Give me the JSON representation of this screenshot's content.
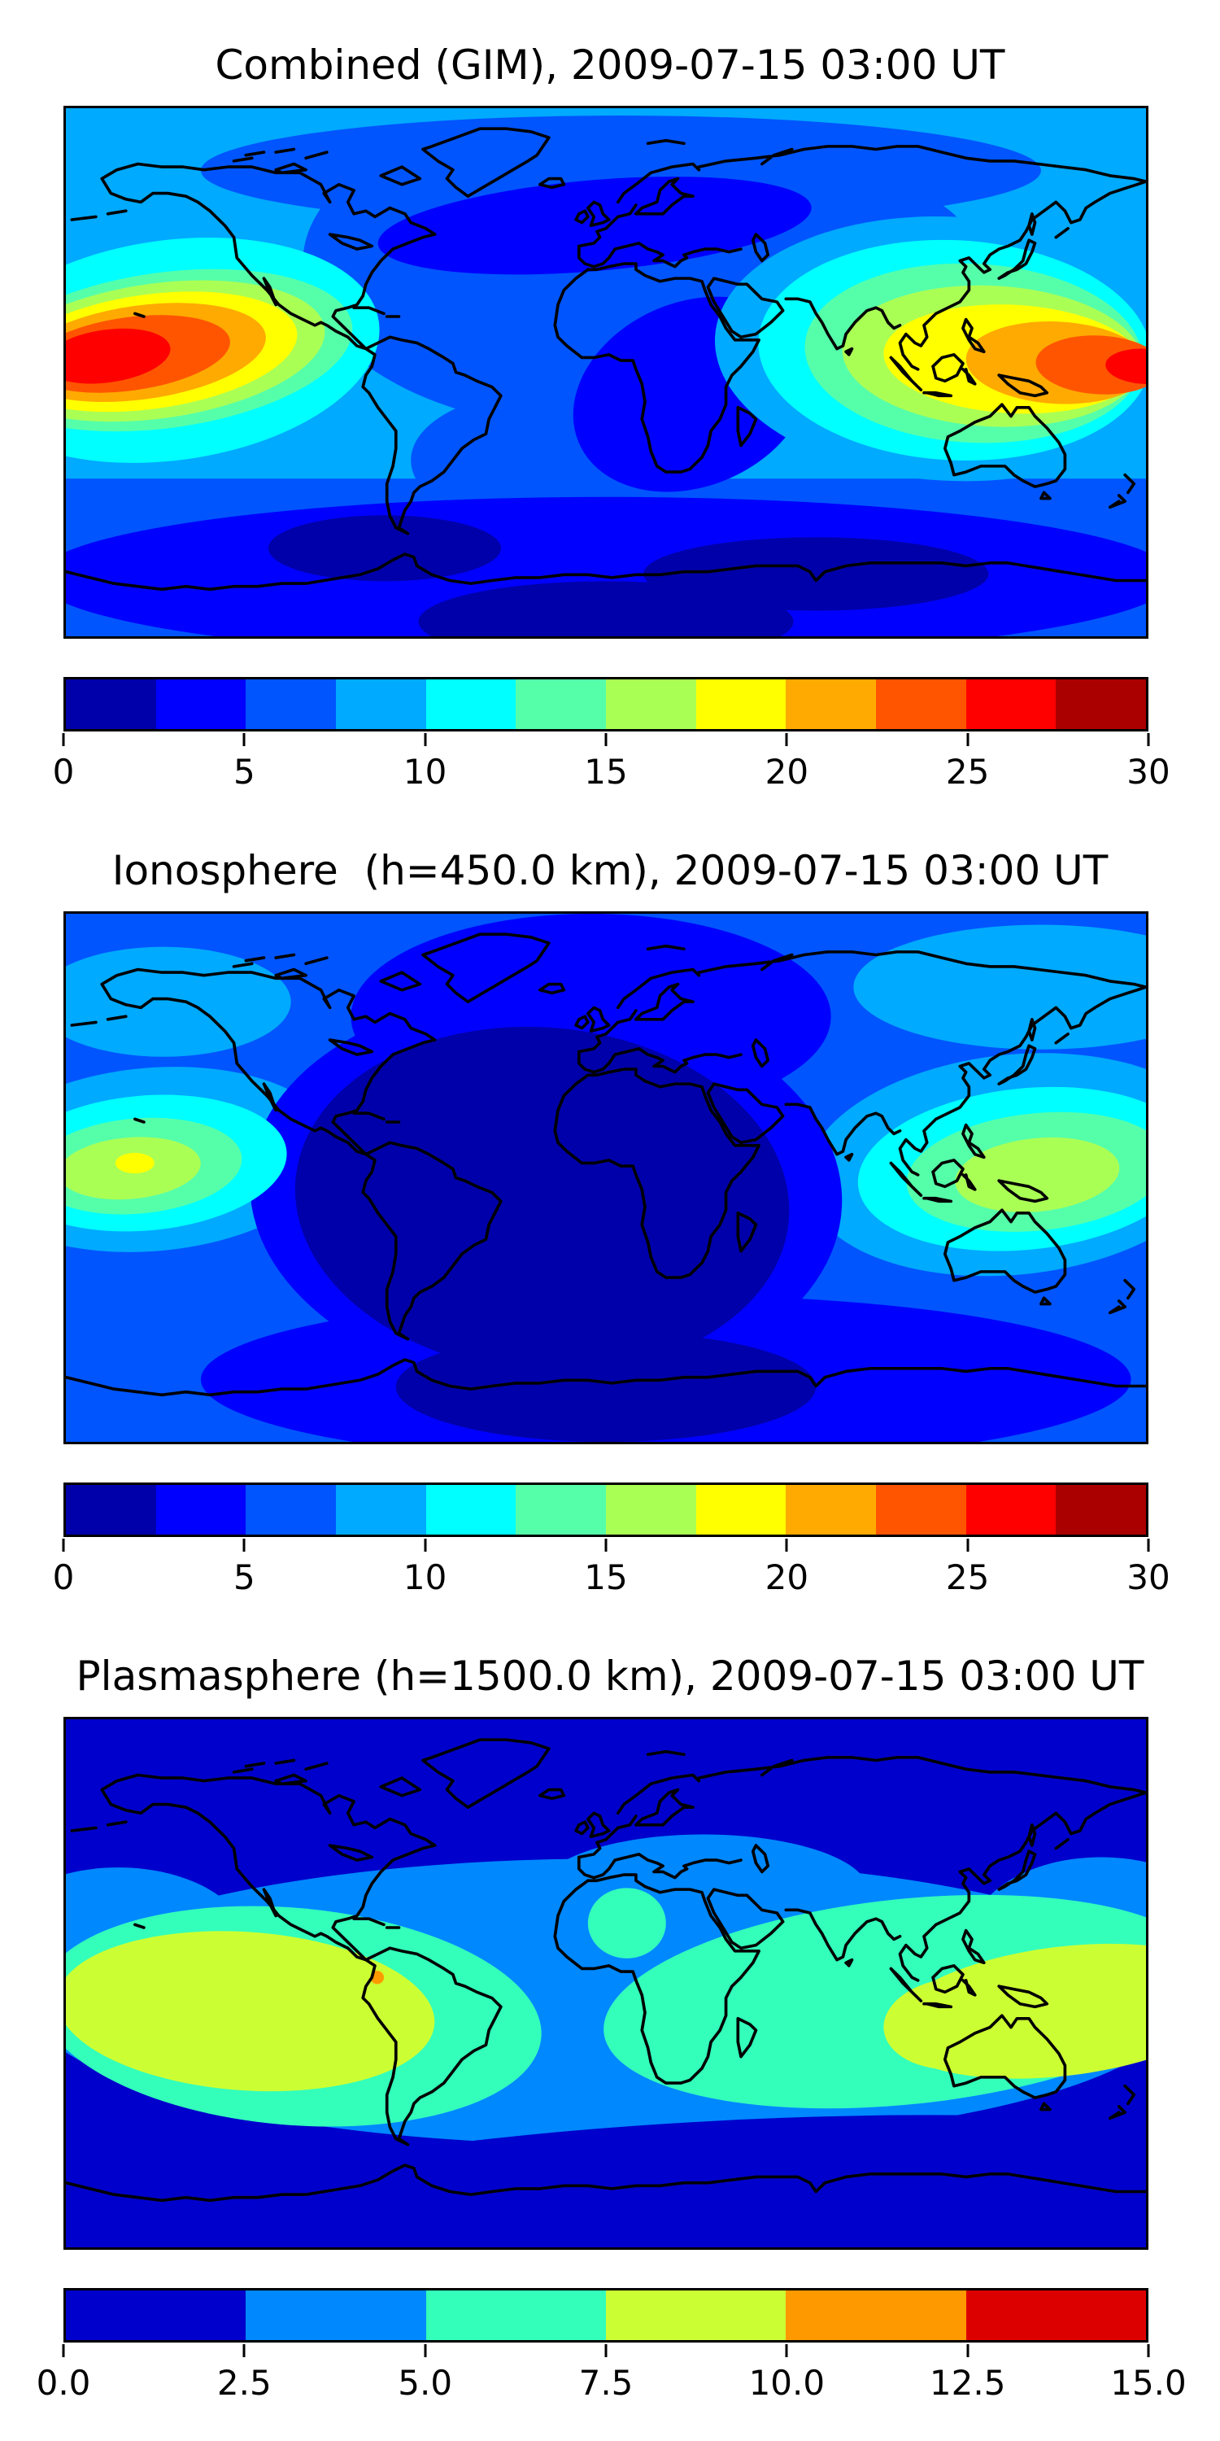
{
  "page": {
    "background": "#ffffff",
    "text_color": "#000000"
  },
  "palettes": {
    "jet12": [
      "#0000aa",
      "#0000ff",
      "#0055ff",
      "#00aaff",
      "#00ffff",
      "#55ffaa",
      "#aaff55",
      "#ffff00",
      "#ffaa00",
      "#ff5500",
      "#ff0000",
      "#aa0000"
    ],
    "jet6": [
      "#0000cc",
      "#0088ff",
      "#33ffbb",
      "#ccff33",
      "#ff9900",
      "#dd0000"
    ],
    "coastline": "#000000"
  },
  "panels": [
    {
      "title": "Combined (GIM), 2009-07-15 03:00 UT",
      "colorbar": {
        "min": 0,
        "max": 30,
        "ticks": [
          "0",
          "5",
          "10",
          "15",
          "20",
          "25",
          "30"
        ],
        "palette": "jet12"
      }
    },
    {
      "title": "Ionosphere  (h=450.0 km), 2009-07-15 03:00 UT",
      "colorbar": {
        "min": 0,
        "max": 30,
        "ticks": [
          "0",
          "5",
          "10",
          "15",
          "20",
          "25",
          "30"
        ],
        "palette": "jet12"
      }
    },
    {
      "title": "Plasmasphere (h=1500.0 km), 2009-07-15 03:00 UT",
      "colorbar": {
        "min": 0,
        "max": 15,
        "ticks": [
          "0.0",
          "2.5",
          "5.0",
          "7.5",
          "10.0",
          "12.5",
          "15.0"
        ],
        "palette": "jet6"
      }
    }
  ],
  "chart_data": [
    {
      "type": "heatmap",
      "subtype": "filled-contour-world-map",
      "title": "Combined (GIM), 2009-07-15 03:00 UT",
      "datetime_ut": "2009-07-15 03:00 UT",
      "projection": "equirectangular",
      "lon_range": [
        -180,
        180
      ],
      "lat_range": [
        -90,
        90
      ],
      "colormap": "jet",
      "levels": [
        0,
        2.5,
        5,
        7.5,
        10,
        12.5,
        15,
        17.5,
        20,
        22.5,
        25,
        27.5,
        30
      ],
      "colorbar_ticks": [
        0,
        5,
        10,
        15,
        20,
        25,
        30
      ],
      "colorbar_orientation": "horizontal",
      "grid": false,
      "coastlines": true,
      "features": {
        "maxima": [
          {
            "name": "central-pacific-equatorial-anomaly",
            "lon": -152,
            "lat": 8,
            "peak_value": 27
          },
          {
            "name": "southeast-asia-west-pacific-anomaly",
            "lon": 178,
            "lat": 8,
            "peak_value": 27
          }
        ],
        "minima": [
          {
            "name": "north-atlantic-europe-night-sector",
            "lon": -10,
            "lat": 50,
            "min_value": 4
          },
          {
            "name": "central-africa-night-sector",
            "lon": 25,
            "lat": -5,
            "min_value": 4
          },
          {
            "name": "antarctic-high-latitudes",
            "lon": 0,
            "lat": -65,
            "min_value": 2
          }
        ],
        "background_value": 8
      }
    },
    {
      "type": "heatmap",
      "subtype": "filled-contour-world-map",
      "title": "Ionosphere  (h=450.0 km), 2009-07-15 03:00 UT",
      "height_km": 450.0,
      "datetime_ut": "2009-07-15 03:00 UT",
      "projection": "equirectangular",
      "lon_range": [
        -180,
        180
      ],
      "lat_range": [
        -90,
        90
      ],
      "colormap": "jet",
      "levels": [
        0,
        2.5,
        5,
        7.5,
        10,
        12.5,
        15,
        17.5,
        20,
        22.5,
        25,
        27.5,
        30
      ],
      "colorbar_ticks": [
        0,
        5,
        10,
        15,
        20,
        25,
        30
      ],
      "colorbar_orientation": "horizontal",
      "grid": false,
      "coastlines": true,
      "features": {
        "maxima": [
          {
            "name": "central-pacific-near-hawaii",
            "lon": -157,
            "lat": 5,
            "peak_value": 18.5
          },
          {
            "name": "southeast-asia-philippines",
            "lon": 140,
            "lat": 0,
            "peak_value": 16
          }
        ],
        "minima": [
          {
            "name": "atlantic-africa-americas-night-sector",
            "lon": -20,
            "lat": -5,
            "min_value": 1.5
          }
        ],
        "background_value": 6
      }
    },
    {
      "type": "heatmap",
      "subtype": "filled-contour-world-map",
      "title": "Plasmasphere (h=1500.0 km), 2009-07-15 03:00 UT",
      "height_km": 1500.0,
      "datetime_ut": "2009-07-15 03:00 UT",
      "projection": "equirectangular",
      "lon_range": [
        -180,
        180
      ],
      "lat_range": [
        -90,
        90
      ],
      "colormap": "jet",
      "levels": [
        0,
        2.5,
        5,
        7.5,
        10,
        12.5,
        15
      ],
      "colorbar_ticks": [
        0.0,
        2.5,
        5.0,
        7.5,
        10.0,
        12.5,
        15.0
      ],
      "colorbar_orientation": "horizontal",
      "grid": false,
      "coastlines": true,
      "features": {
        "maxima": [
          {
            "name": "east-pacific-south-america-lobe",
            "lon": -120,
            "lat": -9,
            "peak_value": 9
          },
          {
            "name": "southeast-asia-west-pacific-lobe",
            "lon": 152,
            "lat": -10,
            "peak_value": 9
          },
          {
            "name": "peru-coast-spot",
            "lon": -76,
            "lat": 2,
            "peak_value": 11
          }
        ],
        "minima": [
          {
            "name": "north-polar-band",
            "lat_above": 45,
            "min_value": 1.5
          },
          {
            "name": "south-polar-band",
            "lat_below": -50,
            "min_value": 1.5
          }
        ],
        "equatorial_band_value": 6
      }
    }
  ]
}
